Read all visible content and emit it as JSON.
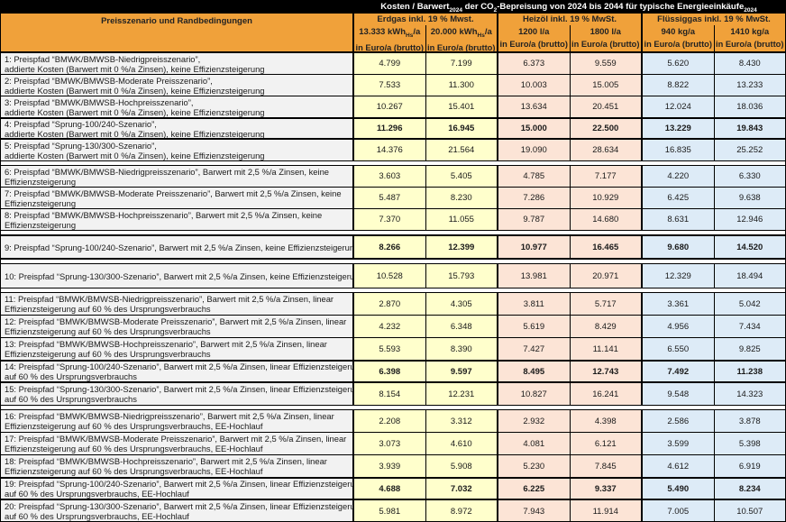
{
  "colors": {
    "header_orange": "#F0A13A",
    "erdgas_bg": "#FFFFCC",
    "heizoel_bg": "#FCE4D6",
    "fluessiggas_bg": "#DDEBF7",
    "label_bg": "#F2F2F2",
    "title_bg": "#000000",
    "title_text": "#FFFFFF"
  },
  "title": {
    "parts": [
      {
        "t": "Kosten / Barwert"
      },
      {
        "t": "2024",
        "sub": true
      },
      {
        "t": " der CO"
      },
      {
        "t": "2",
        "sub": true
      },
      {
        "t": "-Bepreisung von 2024 bis 2044 für typische Energieeinkäufe"
      },
      {
        "t": "2024",
        "sub": true
      }
    ]
  },
  "header": {
    "left": "Preisszenario und Randbedingungen",
    "groups": [
      {
        "label": "Erdgas inkl. 19 % Mwst.",
        "bg": "#FFFFCC",
        "cols": [
          {
            "qty_parts": [
              {
                "t": "13.333 kWh"
              },
              {
                "t": "Hs",
                "sub": true
              },
              {
                "t": "/a"
              }
            ],
            "unit": "in Euro/a (brutto)"
          },
          {
            "qty_parts": [
              {
                "t": "20.000 kWh"
              },
              {
                "t": "Hs",
                "sub": true
              },
              {
                "t": "/a"
              }
            ],
            "unit": "in Euro/a (brutto)"
          }
        ]
      },
      {
        "label": "Heizöl inkl. 19 % MwSt.",
        "bg": "#FCE4D6",
        "cols": [
          {
            "qty_parts": [
              {
                "t": "1200 l/a"
              }
            ],
            "unit": "in Euro/a (brutto)"
          },
          {
            "qty_parts": [
              {
                "t": "1800 l/a"
              }
            ],
            "unit": "in Euro/a (brutto)"
          }
        ]
      },
      {
        "label": "Flüssiggas inkl. 19 % MwSt.",
        "bg": "#DDEBF7",
        "cols": [
          {
            "qty_parts": [
              {
                "t": "940 kg/a"
              }
            ],
            "unit": "in Euro/a (brutto)"
          },
          {
            "qty_parts": [
              {
                "t": "1410 kg/a"
              }
            ],
            "unit": "in Euro/a (brutto)"
          }
        ]
      }
    ]
  },
  "rows": [
    {
      "lines": [
        "1: Preispfad “BMWK/BMWSB-Niedrigpreisszenario”,",
        "addierte Kosten (Barwert mit 0 %/a Zinsen), keine Effizienzsteigerung"
      ],
      "values": [
        "4.799",
        "7.199",
        "6.373",
        "9.559",
        "5.620",
        "8.430"
      ],
      "bold": false,
      "gap_after": false
    },
    {
      "lines": [
        "2: Preispfad “BMWK/BMWSB-Moderate Preisszenario”,",
        "addierte Kosten (Barwert mit 0 %/a Zinsen), keine Effizienzsteigerung"
      ],
      "values": [
        "7.533",
        "11.300",
        "10.003",
        "15.005",
        "8.822",
        "13.233"
      ],
      "bold": false,
      "gap_after": false
    },
    {
      "lines": [
        "3: Preispfad “BMWK/BMWSB-Hochpreisszenario”,",
        "addierte Kosten (Barwert mit 0 %/a Zinsen), keine Effizienzsteigerung"
      ],
      "values": [
        "10.267",
        "15.401",
        "13.634",
        "20.451",
        "12.024",
        "18.036"
      ],
      "bold": false,
      "gap_after": false
    },
    {
      "lines": [
        "4: Preispfad “Sprung-100/240-Szenario”,",
        "addierte Kosten (Barwert mit 0 %/a Zinsen), keine Effizienzsteigerung"
      ],
      "values": [
        "11.296",
        "16.945",
        "15.000",
        "22.500",
        "13.229",
        "19.843"
      ],
      "bold": true,
      "gap_after": false
    },
    {
      "lines": [
        "5: Preispfad “Sprung-130/300-Szenario”,",
        "addierte Kosten (Barwert mit 0 %/a Zinsen), keine Effizienzsteigerung"
      ],
      "values": [
        "14.376",
        "21.564",
        "19.090",
        "28.634",
        "16.835",
        "25.252"
      ],
      "bold": false,
      "gap_after": true
    },
    {
      "lines": [
        "6: Preispfad “BMWK/BMWSB-Niedrigpreisszenario”, Barwert mit 2,5 %/a Zinsen, keine",
        "Effizienzsteigerung"
      ],
      "values": [
        "3.603",
        "5.405",
        "4.785",
        "7.177",
        "4.220",
        "6.330"
      ],
      "bold": false,
      "gap_after": false
    },
    {
      "lines": [
        "7: Preispfad “BMWK/BMWSB-Moderate Preisszenario”, Barwert mit 2,5 %/a Zinsen, keine",
        "Effizienzsteigerung"
      ],
      "values": [
        "5.487",
        "8.230",
        "7.286",
        "10.929",
        "6.425",
        "9.638"
      ],
      "bold": false,
      "gap_after": false
    },
    {
      "lines": [
        "8: Preispfad “BMWK/BMWSB-Hochpreisszenario”, Barwert mit 2,5 %/a Zinsen, keine",
        "Effizienzsteigerung"
      ],
      "values": [
        "7.370",
        "11.055",
        "9.787",
        "14.680",
        "8.631",
        "12.946"
      ],
      "bold": false,
      "gap_after": true
    },
    {
      "lines": [
        "9: Preispfad “Sprung-100/240-Szenario”, Barwert mit 2,5 %/a Zinsen, keine Effizienzsteigerung"
      ],
      "values": [
        "8.266",
        "12.399",
        "10.977",
        "16.465",
        "9.680",
        "14.520"
      ],
      "bold": true,
      "gap_after": true
    },
    {
      "lines": [
        "10: Preispfad “Sprung-130/300-Szenario”, Barwert mit 2,5 %/a Zinsen, keine Effizienzsteigerung"
      ],
      "values": [
        "10.528",
        "15.793",
        "13.981",
        "20.971",
        "12.329",
        "18.494"
      ],
      "bold": false,
      "gap_after": true
    },
    {
      "lines": [
        "11: Preispfad “BMWK/BMWSB-Niedrigpreisszenario”, Barwert mit 2,5 %/a Zinsen, linear",
        "Effizienzsteigerung auf 60 % des Ursprungsverbrauchs"
      ],
      "values": [
        "2.870",
        "4.305",
        "3.811",
        "5.717",
        "3.361",
        "5.042"
      ],
      "bold": false,
      "gap_after": false
    },
    {
      "lines": [
        "12: Preispfad “BMWK/BMWSB-Moderate Preisszenario”, Barwert mit 2,5 %/a Zinsen,  linear",
        "Effizienzsteigerung auf 60 % des Ursprungsverbrauchs"
      ],
      "values": [
        "4.232",
        "6.348",
        "5.619",
        "8.429",
        "4.956",
        "7.434"
      ],
      "bold": false,
      "gap_after": false
    },
    {
      "lines": [
        "13: Preispfad “BMWK/BMWSB-Hochpreisszenario”, Barwert mit 2,5 %/a Zinsen,  linear",
        "Effizienzsteigerung auf 60 % des Ursprungsverbrauchs"
      ],
      "values": [
        "5.593",
        "8.390",
        "7.427",
        "11.141",
        "6.550",
        "9.825"
      ],
      "bold": false,
      "gap_after": false
    },
    {
      "lines": [
        "14: Preispfad “Sprung-100/240-Szenario”, Barwert mit 2,5 %/a Zinsen,  linear Effizienzsteigerung",
        "auf 60 % des Ursprungsverbrauchs"
      ],
      "values": [
        "6.398",
        "9.597",
        "8.495",
        "12.743",
        "7.492",
        "11.238"
      ],
      "bold": true,
      "gap_after": false
    },
    {
      "lines": [
        "15: Preispfad “Sprung-130/300-Szenario”, Barwert mit 2,5 %/a Zinsen,  linear Effizienzsteigerung",
        "auf 60 % des Ursprungsverbrauchs"
      ],
      "values": [
        "8.154",
        "12.231",
        "10.827",
        "16.241",
        "9.548",
        "14.323"
      ],
      "bold": false,
      "gap_after": true
    },
    {
      "lines": [
        "16: Preispfad “BMWK/BMWSB-Niedrigpreisszenario”, Barwert mit 2,5 %/a Zinsen, linear",
        "Effizienzsteigerung auf 60 % des Ursprungsverbrauchs, EE-Hochlauf"
      ],
      "values": [
        "2.208",
        "3.312",
        "2.932",
        "4.398",
        "2.586",
        "3.878"
      ],
      "bold": false,
      "gap_after": false
    },
    {
      "lines": [
        "17: Preispfad “BMWK/BMWSB-Moderate Preisszenario”, Barwert mit 2,5 %/a Zinsen,  linear",
        "Effizienzsteigerung auf 60 % des Ursprungsverbrauchs, EE-Hochlauf"
      ],
      "values": [
        "3.073",
        "4.610",
        "4.081",
        "6.121",
        "3.599",
        "5.398"
      ],
      "bold": false,
      "gap_after": false
    },
    {
      "lines": [
        "18: Preispfad “BMWK/BMWSB-Hochpreisszenario”, Barwert mit 2,5 %/a Zinsen,  linear",
        "Effizienzsteigerung auf 60 % des Ursprungsverbrauchs, EE-Hochlauf"
      ],
      "values": [
        "3.939",
        "5.908",
        "5.230",
        "7.845",
        "4.612",
        "6.919"
      ],
      "bold": false,
      "gap_after": false
    },
    {
      "lines": [
        "19: Preispfad “Sprung-100/240-Szenario”, Barwert mit 2,5 %/a Zinsen,  linear Effizienzsteigerung",
        "auf 60 % des Ursprungsverbrauchs, EE-Hochlauf"
      ],
      "values": [
        "4.688",
        "7.032",
        "6.225",
        "9.337",
        "5.490",
        "8.234"
      ],
      "bold": true,
      "gap_after": false
    },
    {
      "lines": [
        "20: Preispfad “Sprung-130/300-Szenario”, Barwert mit 2,5 %/a Zinsen,  linear Effizienzsteigerung",
        "auf 60 % des Ursprungsverbrauchs, EE-Hochlauf"
      ],
      "values": [
        "5.981",
        "8.972",
        "7.943",
        "11.914",
        "7.005",
        "10.507"
      ],
      "bold": false,
      "gap_after": false
    }
  ]
}
